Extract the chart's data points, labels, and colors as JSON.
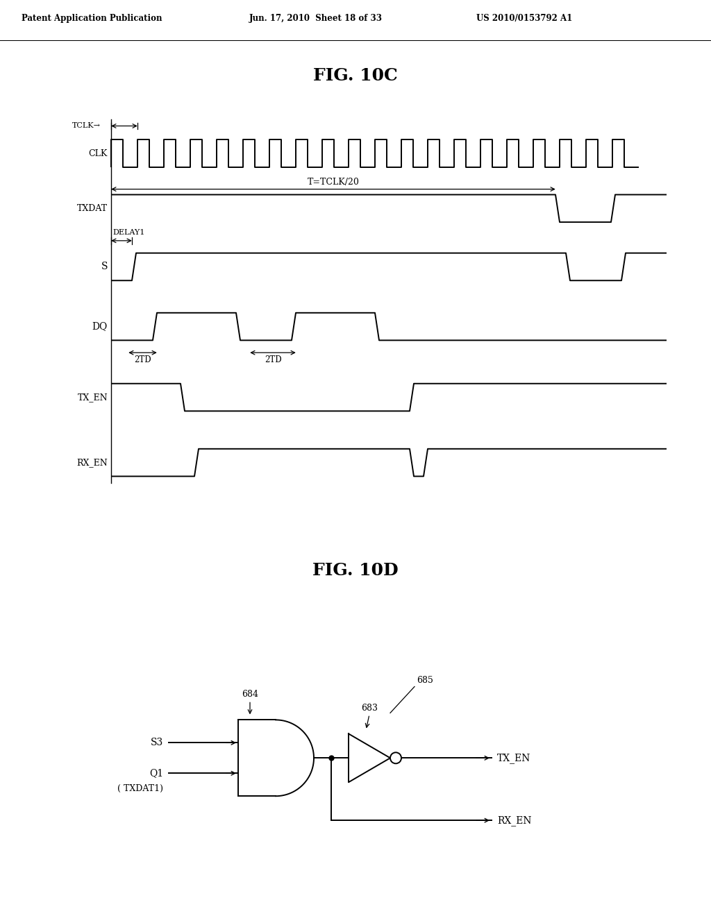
{
  "title_10c": "FIG. 10C",
  "title_10d": "FIG. 10D",
  "header_left": "Patent Application Publication",
  "header_mid": "Jun. 17, 2010  Sheet 18 of 33",
  "header_right": "US 2010/0153792 A1",
  "bg_color": "#ffffff",
  "line_color": "#000000"
}
